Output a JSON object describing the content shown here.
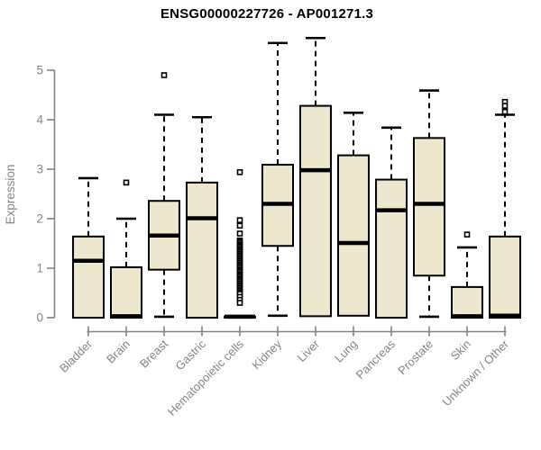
{
  "chart_data": {
    "type": "boxplot",
    "title": "ENSG00000227726 - AP001271.3",
    "ylabel": "Expression",
    "xlabel": "",
    "ylim": [
      0,
      5.75
    ],
    "yticks": [
      0,
      1,
      2,
      3,
      4,
      5
    ],
    "grid": false,
    "legend": "none",
    "colors": {
      "box_fill": "#EDE7CE",
      "box_stroke": "#000000",
      "median": "#000000",
      "whisker": "#000000",
      "axis": "#828282",
      "tick_label": "#848484",
      "title": "#000000",
      "background": "#FFFFFF"
    },
    "categories": [
      "Bladder",
      "Brain",
      "Breast",
      "Gastric",
      "Hematopoietic cells",
      "Kidney",
      "Liver",
      "Lung",
      "Pancreas",
      "Prostate",
      "Skin",
      "Unknown / Other"
    ],
    "boxes": [
      {
        "category": "Bladder",
        "whisker_low": 0,
        "q1": 0,
        "median": 1.15,
        "q3": 1.64,
        "whisker_high": 2.82,
        "outliers": []
      },
      {
        "category": "Brain",
        "whisker_low": 0,
        "q1": 0,
        "median": 0.03,
        "q3": 1.02,
        "whisker_high": 2.0,
        "outliers": [
          2.73
        ]
      },
      {
        "category": "Breast",
        "whisker_low": 0.02,
        "q1": 0.97,
        "median": 1.66,
        "q3": 2.36,
        "whisker_high": 4.1,
        "outliers": [
          4.9
        ]
      },
      {
        "category": "Gastric",
        "whisker_low": 0,
        "q1": 0,
        "median": 2.01,
        "q3": 2.73,
        "whisker_high": 4.05,
        "outliers": []
      },
      {
        "category": "Hematopoietic cells",
        "whisker_low": 0.02,
        "q1": 0.02,
        "median": 0.02,
        "q3": 0.02,
        "whisker_high": 0.02,
        "outliers": [
          2.94,
          1.97,
          1.86,
          1.7,
          1.56,
          1.53,
          1.5,
          1.47,
          1.44,
          1.41,
          1.38,
          1.35,
          1.32,
          1.29,
          1.26,
          1.23,
          1.2,
          1.17,
          1.14,
          1.11,
          1.08,
          1.05,
          1.02,
          0.99,
          0.96,
          0.93,
          0.9,
          0.87,
          0.84,
          0.81,
          0.78,
          0.75,
          0.72,
          0.69,
          0.66,
          0.63,
          0.6,
          0.57,
          0.54,
          0.51,
          0.48,
          0.42,
          0.36,
          0.3
        ]
      },
      {
        "category": "Kidney",
        "whisker_low": 0.04,
        "q1": 1.45,
        "median": 2.3,
        "q3": 3.09,
        "whisker_high": 5.55,
        "outliers": []
      },
      {
        "category": "Liver",
        "whisker_low": 0.03,
        "q1": 0.03,
        "median": 2.98,
        "q3": 4.28,
        "whisker_high": 5.65,
        "outliers": []
      },
      {
        "category": "Lung",
        "whisker_low": 0.04,
        "q1": 0.04,
        "median": 1.51,
        "q3": 3.28,
        "whisker_high": 4.14,
        "outliers": []
      },
      {
        "category": "Pancreas",
        "whisker_low": 0,
        "q1": 0,
        "median": 2.17,
        "q3": 2.79,
        "whisker_high": 3.84,
        "outliers": []
      },
      {
        "category": "Prostate",
        "whisker_low": 0.02,
        "q1": 0.85,
        "median": 2.3,
        "q3": 3.63,
        "whisker_high": 4.59,
        "outliers": []
      },
      {
        "category": "Skin",
        "whisker_low": 0,
        "q1": 0,
        "median": 0.03,
        "q3": 0.62,
        "whisker_high": 1.42,
        "outliers": [
          1.68
        ]
      },
      {
        "category": "Unknown / Other",
        "whisker_low": 0,
        "q1": 0,
        "median": 0.04,
        "q3": 1.64,
        "whisker_high": 4.1,
        "outliers": [
          4.36,
          4.28,
          4.16
        ]
      }
    ]
  }
}
